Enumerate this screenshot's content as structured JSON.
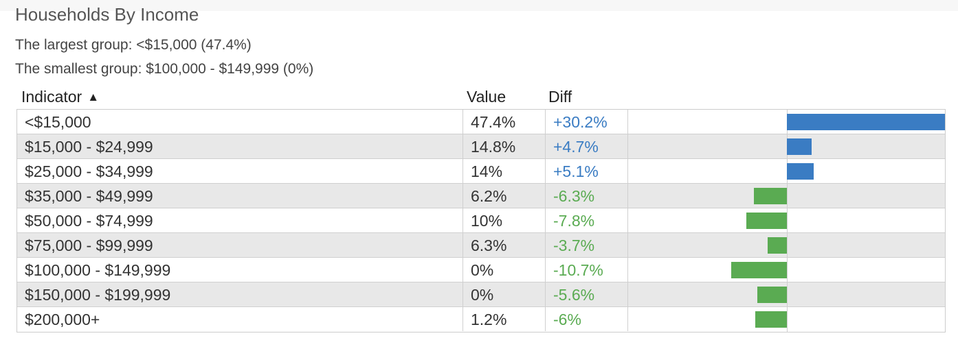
{
  "title": "Households By Income",
  "summary": {
    "largest": "The largest group: <$15,000 (47.4%)",
    "smallest": "The smallest group: $100,000 - $149,999 (0%)"
  },
  "columns": {
    "indicator": "Indicator",
    "value": "Value",
    "diff": "Diff",
    "sort_icon": "sort-ascending-icon"
  },
  "colors": {
    "positive": "#3a7cc3",
    "negative": "#5aab52"
  },
  "rows": [
    {
      "indicator": "<$15,000",
      "value": "47.4%",
      "diff": "+30.2%",
      "diff_value": 30.2
    },
    {
      "indicator": "$15,000 - $24,999",
      "value": "14.8%",
      "diff": "+4.7%",
      "diff_value": 4.7
    },
    {
      "indicator": "$25,000 - $34,999",
      "value": "14%",
      "diff": "+5.1%",
      "diff_value": 5.1
    },
    {
      "indicator": "$35,000 - $49,999",
      "value": "6.2%",
      "diff": "-6.3%",
      "diff_value": -6.3
    },
    {
      "indicator": "$50,000 - $74,999",
      "value": "10%",
      "diff": "-7.8%",
      "diff_value": -7.8
    },
    {
      "indicator": "$75,000 - $99,999",
      "value": "6.3%",
      "diff": "-3.7%",
      "diff_value": -3.7
    },
    {
      "indicator": "$100,000 - $149,999",
      "value": "0%",
      "diff": "-10.7%",
      "diff_value": -10.7
    },
    {
      "indicator": "$150,000 - $199,999",
      "value": "0%",
      "diff": "-5.6%",
      "diff_value": -5.6
    },
    {
      "indicator": "$200,000+",
      "value": "1.2%",
      "diff": "-6%",
      "diff_value": -6
    }
  ]
}
